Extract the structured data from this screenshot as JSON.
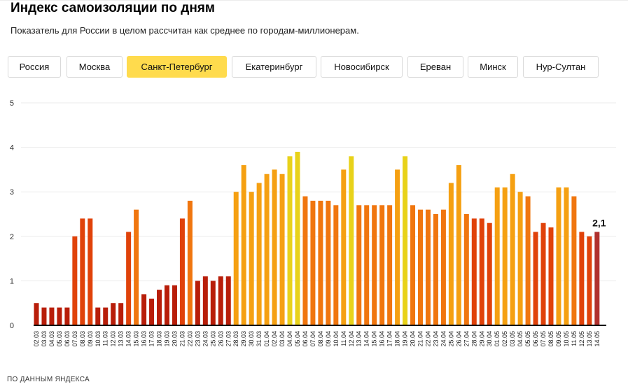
{
  "header": {
    "title": "Индекс самоизоляции по дням",
    "subtitle": "Показатель для России в целом рассчитан как среднее по городам-миллионерам."
  },
  "tabs": [
    {
      "label": "Россия",
      "active": false
    },
    {
      "label": "Москва",
      "active": false
    },
    {
      "label": "Санкт-Петербург",
      "active": true
    },
    {
      "label": "Екатеринбург",
      "active": false
    },
    {
      "label": "Новосибирск",
      "active": false
    },
    {
      "label": "Ереван",
      "active": false
    },
    {
      "label": "Минск",
      "active": false
    },
    {
      "label": "Нур-Султан",
      "active": false
    }
  ],
  "footer": "ПО ДАННЫМ ЯНДЕКСА",
  "colors": {
    "active_tab": "#ffdb4d",
    "axis": "#000000",
    "grid": "#ebebeb",
    "last_bar": "#b0312e",
    "scale": [
      "#b81e0a",
      "#e0420a",
      "#f0760f",
      "#f5a012",
      "#e8d21a"
    ]
  },
  "chart_data": {
    "type": "bar",
    "ylim": [
      0,
      5
    ],
    "yticks": [
      "0",
      "1",
      "2",
      "3",
      "4",
      "5"
    ],
    "grid": true,
    "categories": [
      "02.03",
      "03.03",
      "04.03",
      "05.03",
      "06.03",
      "07.03",
      "08.03",
      "09.03",
      "10.03",
      "11.03",
      "12.03",
      "13.03",
      "14.03",
      "15.03",
      "16.03",
      "17.03",
      "18.03",
      "19.03",
      "20.03",
      "21.03",
      "22.03",
      "23.03",
      "24.03",
      "25.03",
      "26.03",
      "27.03",
      "28.03",
      "29.03",
      "30.03",
      "31.03",
      "01.04",
      "02.04",
      "03.04",
      "04.04",
      "05.04",
      "06.04",
      "07.04",
      "08.04",
      "09.04",
      "10.04",
      "11.04",
      "12.04",
      "13.04",
      "14.04",
      "15.04",
      "16.04",
      "17.04",
      "18.04",
      "19.04",
      "20.04",
      "21.04",
      "22.04",
      "23.04",
      "24.04",
      "25.04",
      "26.04",
      "27.04",
      "28.04",
      "29.04",
      "30.04",
      "01.05",
      "02.05",
      "03.05",
      "04.05",
      "05.05",
      "06.05",
      "07.05",
      "08.05",
      "09.05",
      "10.05",
      "11.05",
      "12.05",
      "13.05",
      "14.05"
    ],
    "values": [
      0.5,
      0.4,
      0.4,
      0.4,
      0.4,
      2.0,
      2.4,
      2.4,
      0.4,
      0.4,
      0.5,
      0.5,
      2.1,
      2.6,
      0.7,
      0.6,
      0.8,
      0.9,
      0.9,
      2.4,
      2.8,
      1.0,
      1.1,
      1.0,
      1.1,
      1.1,
      3.0,
      3.6,
      3.0,
      3.2,
      3.4,
      3.5,
      3.4,
      3.8,
      3.9,
      2.9,
      2.8,
      2.8,
      2.8,
      2.7,
      3.5,
      3.8,
      2.7,
      2.7,
      2.7,
      2.7,
      2.7,
      3.5,
      3.8,
      2.7,
      2.6,
      2.6,
      2.5,
      2.6,
      3.2,
      3.6,
      2.5,
      2.4,
      2.4,
      2.3,
      3.1,
      3.1,
      3.4,
      3.0,
      2.9,
      2.1,
      2.3,
      2.2,
      3.1,
      3.1,
      2.9,
      2.1,
      2.0,
      2.1
    ],
    "annotation": {
      "index": 73,
      "text": "2,1"
    }
  }
}
